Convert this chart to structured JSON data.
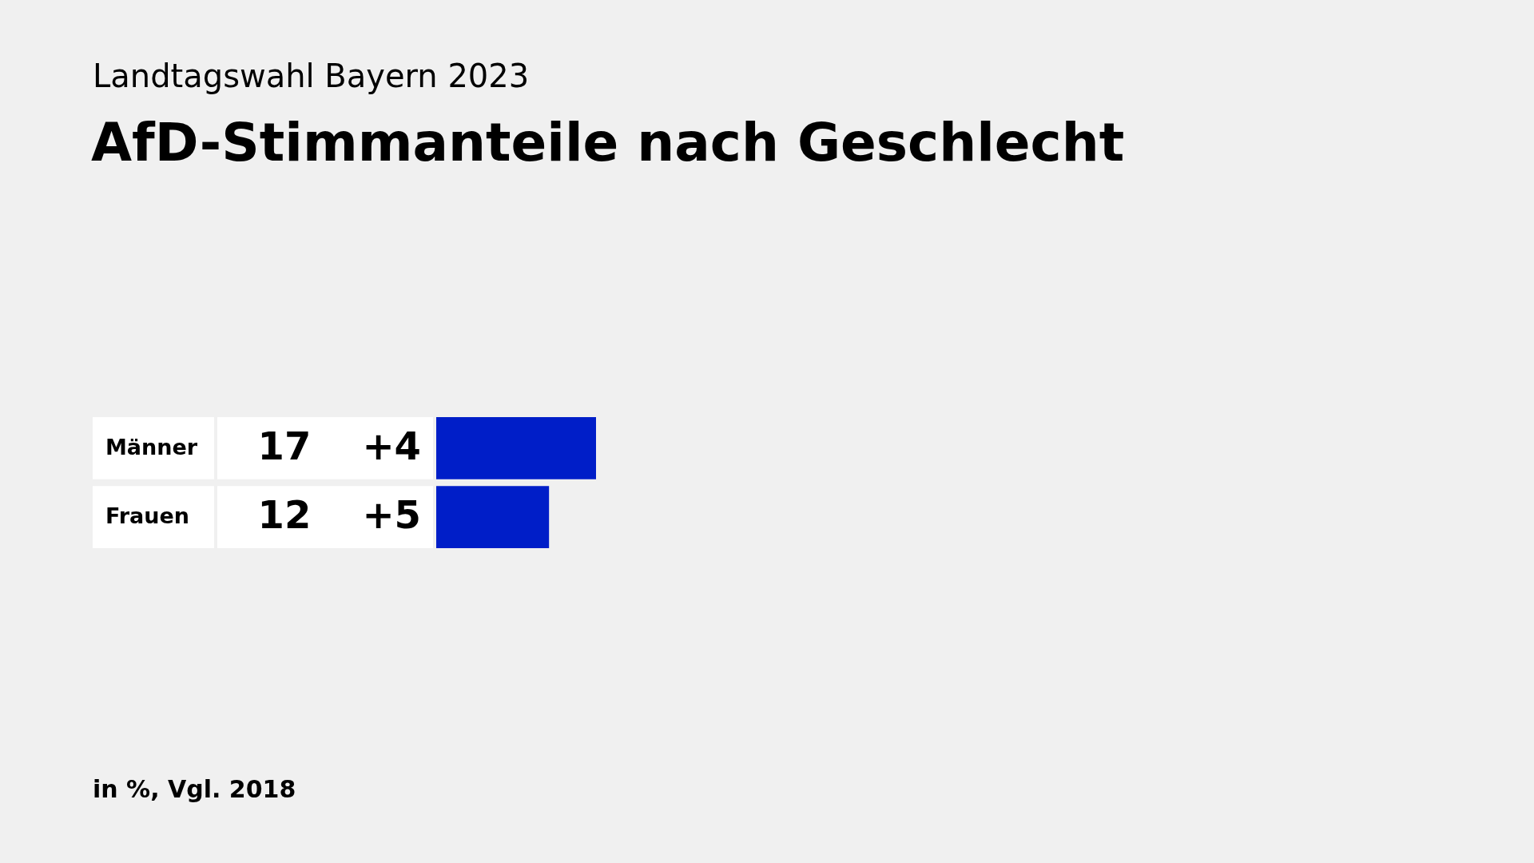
{
  "chart_data": {
    "type": "bar",
    "orientation": "horizontal",
    "subtitle": "Landtagswahl Bayern 2023",
    "title": "AfD-Stimmanteile nach Geschlecht",
    "categories": [
      "Männer",
      "Frauen"
    ],
    "values": [
      17,
      12
    ],
    "color": "#001ec8",
    "data_labels": true,
    "annotations": [
      "+4",
      "+5",
      "in %, Vgl. 2018"
    ]
  }
}
